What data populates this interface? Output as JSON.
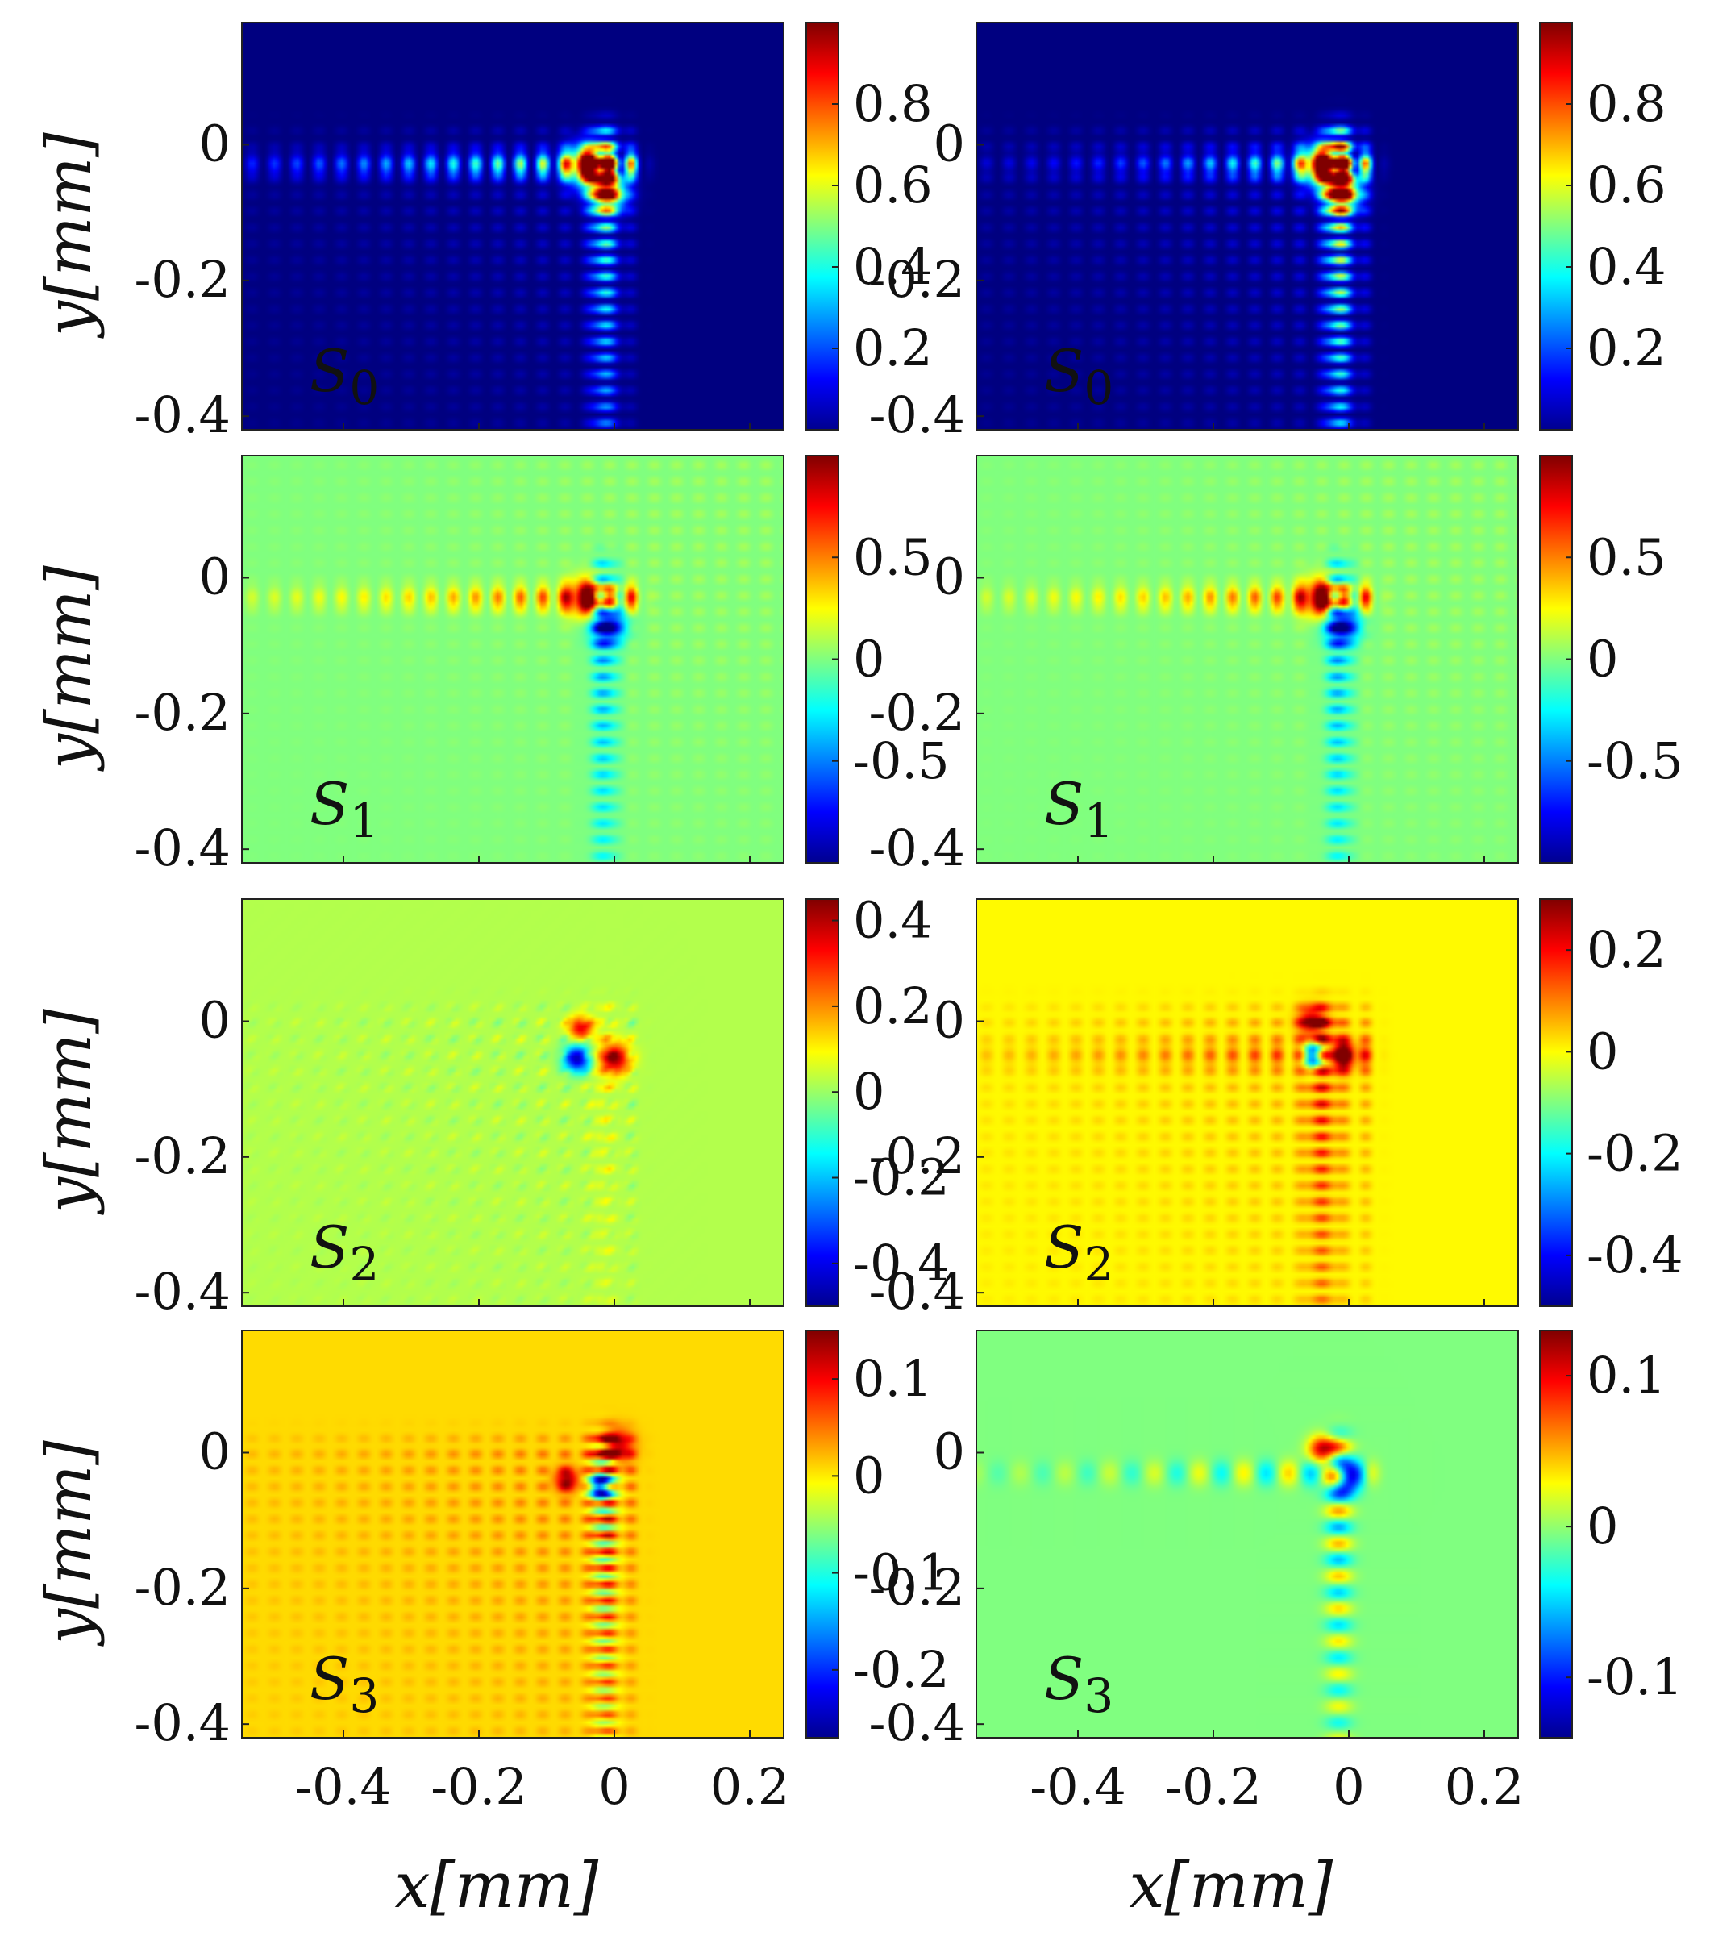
{
  "figure": {
    "x_axis_label": "x[mm]",
    "y_axis_label": "y[mm]",
    "x_ticks": [
      "-0.4",
      "-0.2",
      "0",
      "0.2"
    ],
    "y_ticks": [
      "0",
      "-0.2",
      "-0.4"
    ]
  },
  "chart_data": [
    {
      "type": "heatmap",
      "title": "S0",
      "label_main": "S",
      "label_sub": "0",
      "label_color": "#ffffff",
      "xlabel": "",
      "ylabel": "y[mm]",
      "xlim": [
        -0.55,
        0.25
      ],
      "ylim": [
        -0.42,
        0.18
      ],
      "colormap": "jet",
      "clim": [
        0,
        1
      ],
      "colorbar_ticks": [
        0.2,
        0.4,
        0.6,
        0.8
      ],
      "colorbar_labels": [
        "0.2",
        "0.4",
        "0.6",
        "0.8"
      ],
      "background_value": 0,
      "pattern": "intensity",
      "column": "left"
    },
    {
      "type": "heatmap",
      "title": "S0",
      "label_main": "S",
      "label_sub": "0",
      "label_color": "#ffffff",
      "xlabel": "",
      "ylabel": "",
      "xlim": [
        -0.55,
        0.25
      ],
      "ylim": [
        -0.42,
        0.18
      ],
      "colormap": "jet",
      "clim": [
        0,
        1
      ],
      "colorbar_ticks": [
        0.2,
        0.4,
        0.6,
        0.8
      ],
      "colorbar_labels": [
        "0.2",
        "0.4",
        "0.6",
        "0.8"
      ],
      "background_value": 0,
      "pattern": "intensity2",
      "column": "right"
    },
    {
      "type": "heatmap",
      "title": "S1",
      "label_main": "S",
      "label_sub": "1",
      "label_color": "#111111",
      "xlabel": "",
      "ylabel": "y[mm]",
      "xlim": [
        -0.55,
        0.25
      ],
      "ylim": [
        -0.42,
        0.18
      ],
      "colormap": "jet",
      "clim": [
        -1,
        1
      ],
      "colorbar_ticks": [
        0.5,
        0,
        -0.5
      ],
      "colorbar_labels": [
        "0.5",
        "0",
        "-0.5"
      ],
      "background_value": 0,
      "pattern": "s1",
      "column": "left"
    },
    {
      "type": "heatmap",
      "title": "S1",
      "label_main": "S",
      "label_sub": "1",
      "label_color": "#111111",
      "xlabel": "",
      "ylabel": "",
      "xlim": [
        -0.55,
        0.25
      ],
      "ylim": [
        -0.42,
        0.18
      ],
      "colormap": "jet",
      "clim": [
        -1,
        1
      ],
      "colorbar_ticks": [
        0.5,
        0,
        -0.5
      ],
      "colorbar_labels": [
        "0.5",
        "0",
        "-0.5"
      ],
      "background_value": 0,
      "pattern": "s1",
      "column": "right"
    },
    {
      "type": "heatmap",
      "title": "S2",
      "label_main": "S",
      "label_sub": "2",
      "label_color": "#111111",
      "xlabel": "",
      "ylabel": "y[mm]",
      "xlim": [
        -0.55,
        0.25
      ],
      "ylim": [
        -0.42,
        0.18
      ],
      "colormap": "jet",
      "clim": [
        -0.5,
        0.45
      ],
      "colorbar_ticks": [
        0.4,
        0.2,
        0,
        -0.2,
        -0.4
      ],
      "colorbar_labels": [
        "0.4",
        "0.2",
        "0",
        "-0.2",
        "-0.4"
      ],
      "background_value": 0.03,
      "pattern": "s2a",
      "column": "left"
    },
    {
      "type": "heatmap",
      "title": "S2",
      "label_main": "S",
      "label_sub": "2",
      "label_color": "#111111",
      "xlabel": "",
      "ylabel": "",
      "xlim": [
        -0.55,
        0.25
      ],
      "ylim": [
        -0.42,
        0.18
      ],
      "colormap": "jet",
      "clim": [
        -0.5,
        0.3
      ],
      "colorbar_ticks": [
        0.2,
        0,
        -0.2,
        -0.4
      ],
      "colorbar_labels": [
        "0.2",
        "0",
        "-0.2",
        "-0.4"
      ],
      "background_value": 0.05,
      "pattern": "s2b",
      "column": "right"
    },
    {
      "type": "heatmap",
      "title": "S3",
      "label_main": "S",
      "label_sub": "3",
      "label_color": "#111111",
      "xlabel": "x[mm]",
      "ylabel": "y[mm]",
      "xlim": [
        -0.55,
        0.25
      ],
      "ylim": [
        -0.42,
        0.18
      ],
      "colormap": "jet",
      "clim": [
        -0.27,
        0.15
      ],
      "colorbar_ticks": [
        0.1,
        0,
        -0.1,
        -0.2
      ],
      "colorbar_labels": [
        "0.1",
        "0",
        "-0.1",
        "-0.2"
      ],
      "background_value": 0.02,
      "pattern": "s3a",
      "column": "left"
    },
    {
      "type": "heatmap",
      "title": "S3",
      "label_main": "S",
      "label_sub": "3",
      "label_color": "#111111",
      "xlabel": "x[mm]",
      "ylabel": "",
      "xlim": [
        -0.55,
        0.25
      ],
      "ylim": [
        -0.42,
        0.18
      ],
      "colormap": "jet",
      "clim": [
        -0.14,
        0.13
      ],
      "colorbar_ticks": [
        0.1,
        0,
        -0.1
      ],
      "colorbar_labels": [
        "0.1",
        "0",
        "-0.1"
      ],
      "background_value": 0,
      "pattern": "s3b",
      "column": "right"
    }
  ]
}
